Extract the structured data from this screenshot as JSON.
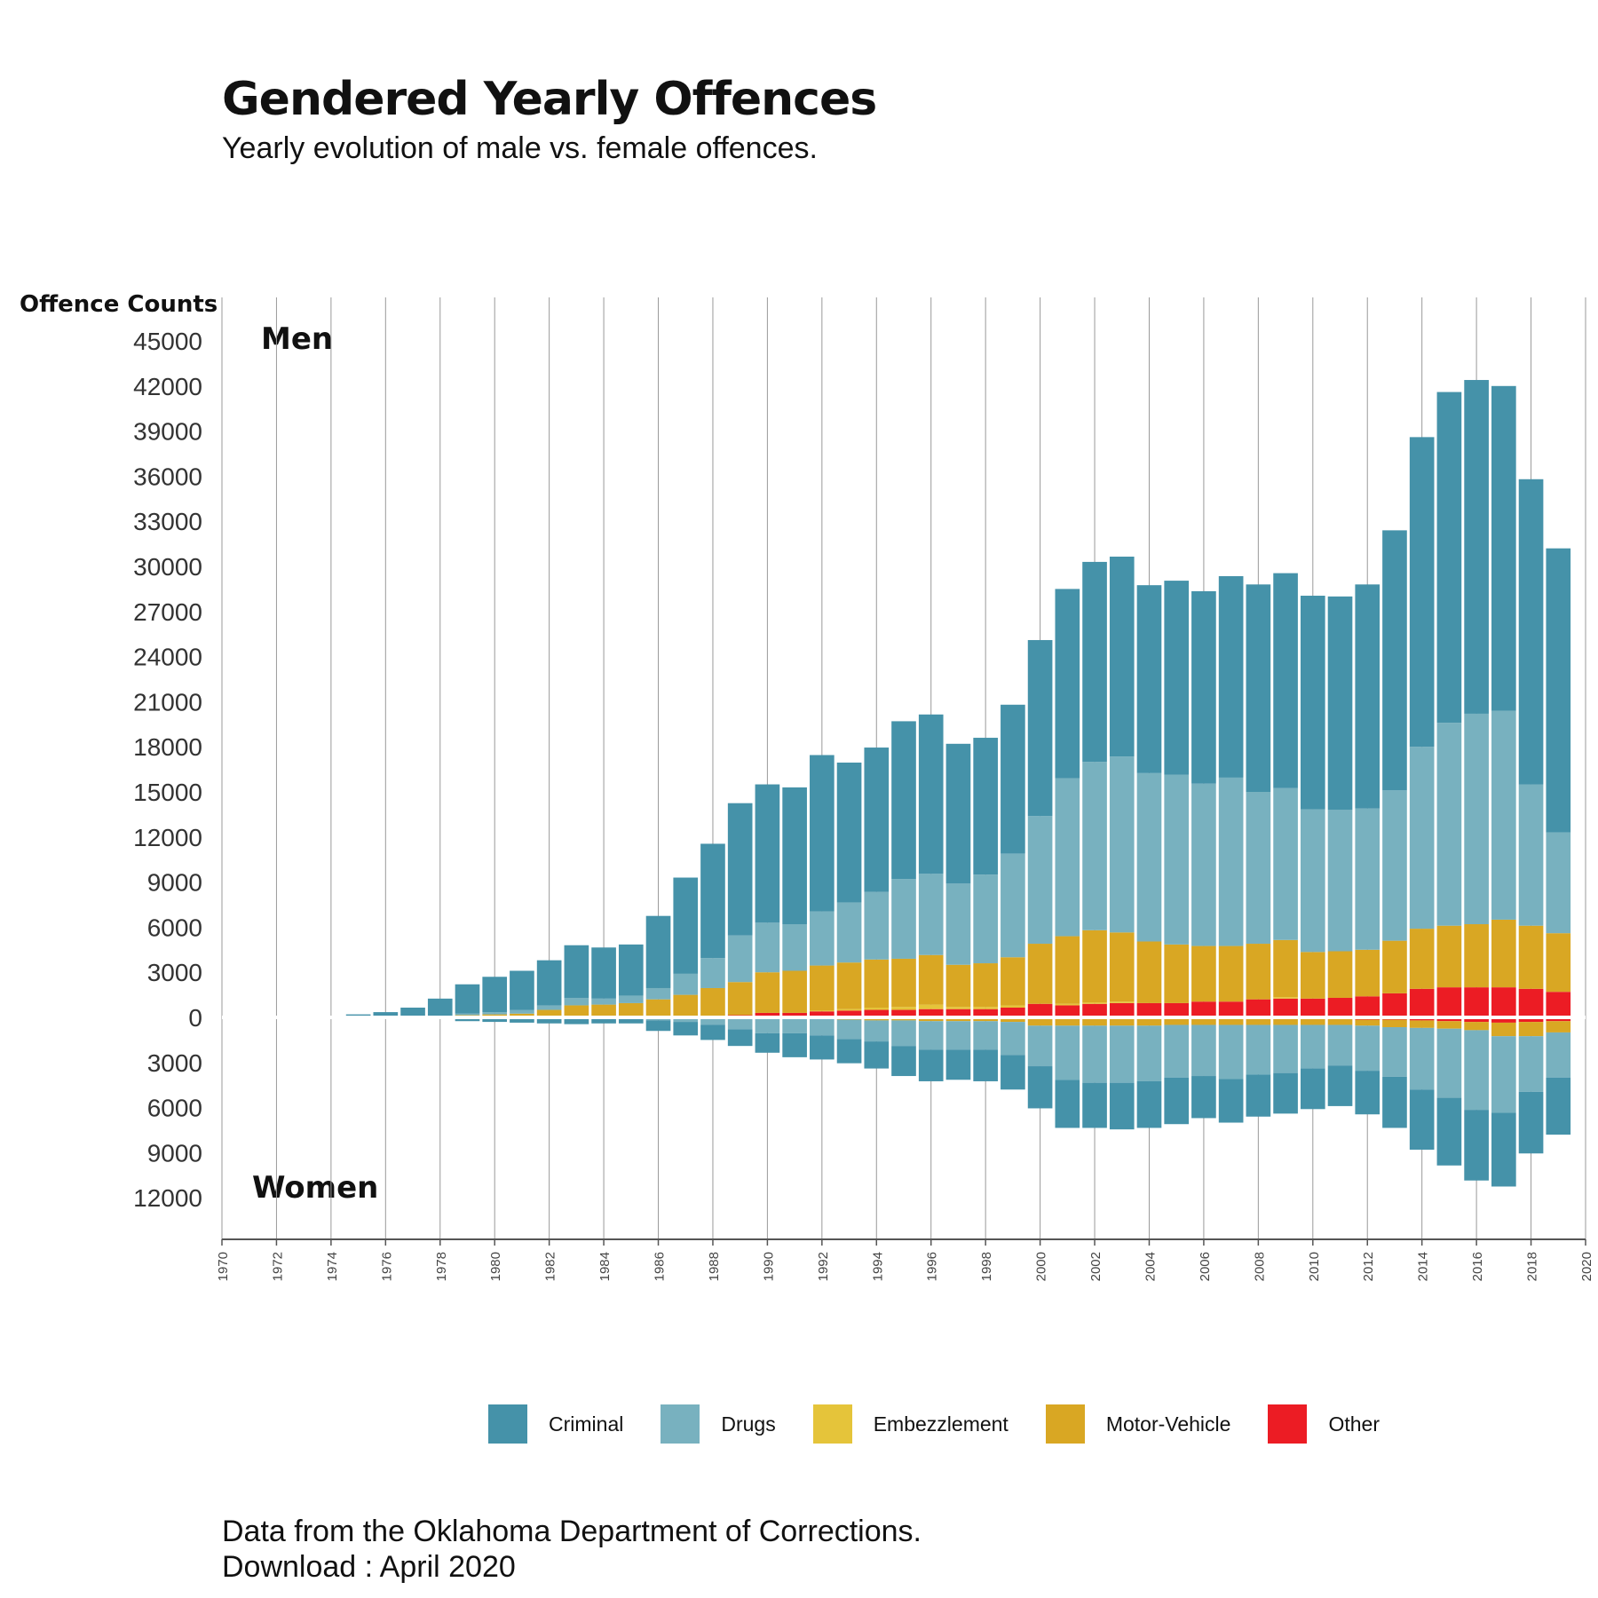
{
  "title": "Gendered Yearly Offences",
  "subtitle": "Yearly evolution of male vs. female offences.",
  "footer": {
    "line1": "Data from the Oklahoma Department of Corrections.",
    "line2": "Download : April 2020"
  },
  "chart_data": {
    "type": "bar",
    "stacked": true,
    "diverging": true,
    "title": "Gendered Yearly Offences",
    "subtitle": "Yearly evolution of male vs. female offences.",
    "ylabel": "Offence Counts",
    "upper_label": "Men",
    "lower_label": "Women",
    "ylim": [
      -12500,
      45000
    ],
    "xlim": [
      1970,
      2020
    ],
    "y_ticks": [
      45000,
      42000,
      39000,
      36000,
      33000,
      30000,
      27000,
      24000,
      21000,
      18000,
      15000,
      12000,
      9000,
      6000,
      3000,
      0,
      -3000,
      -6000,
      -9000,
      -12000
    ],
    "y_tick_labels": [
      "45000",
      "42000",
      "39000",
      "36000",
      "33000",
      "30000",
      "27000",
      "24000",
      "21000",
      "18000",
      "15000",
      "12000",
      "9000",
      "6000",
      "3000",
      "0",
      "3000",
      "6000",
      "9000",
      "12000"
    ],
    "x_ticks": [
      "1970",
      "1972",
      "1974",
      "1976",
      "1978",
      "1980",
      "1982",
      "1984",
      "1986",
      "1988",
      "1990",
      "1992",
      "1994",
      "1996",
      "1998",
      "2000",
      "2002",
      "2004",
      "2006",
      "2008",
      "2010",
      "2012",
      "2014",
      "2016",
      "2018",
      "2020"
    ],
    "grid": "vertical",
    "legend_position": "bottom",
    "colors": {
      "Criminal": "#4592a9",
      "Drugs": "#78b1bf",
      "Embezzlement": "#e5c43a",
      "Motor-Vehicle": "#d9a723",
      "Other": "#ec1c24"
    },
    "series_order": [
      "Other",
      "Embezzlement",
      "Motor-Vehicle",
      "Drugs",
      "Criminal"
    ],
    "legend_order": [
      "Criminal",
      "Drugs",
      "Embezzlement",
      "Motor-Vehicle",
      "Other"
    ],
    "years": [
      1974,
      1975,
      1976,
      1977,
      1978,
      1979,
      1980,
      1981,
      1982,
      1983,
      1984,
      1985,
      1986,
      1987,
      1988,
      1989,
      1990,
      1991,
      1992,
      1993,
      1994,
      1995,
      1996,
      1997,
      1998,
      1999,
      2000,
      2001,
      2002,
      2003,
      2004,
      2005,
      2006,
      2007,
      2008,
      2009,
      2010,
      2011,
      2012,
      2013,
      2014,
      2015,
      2016,
      2017,
      2018,
      2019
    ],
    "men": [
      {
        "name": "Other",
        "values": [
          0,
          0,
          0,
          0,
          0,
          0,
          0,
          0,
          0,
          0,
          0,
          0,
          0,
          0,
          100,
          150,
          300,
          300,
          400,
          450,
          500,
          500,
          550,
          550,
          550,
          650,
          900,
          800,
          900,
          950,
          950,
          950,
          1050,
          1050,
          1200,
          1250,
          1250,
          1300,
          1400,
          1600,
          1900,
          2000,
          2000,
          2000,
          1900,
          1700
        ]
      },
      {
        "name": "Embezzlement",
        "values": [
          0,
          0,
          0,
          0,
          0,
          0,
          0,
          0,
          0,
          0,
          0,
          0,
          0,
          0,
          0,
          0,
          0,
          0,
          50,
          100,
          150,
          200,
          300,
          150,
          150,
          150,
          0,
          100,
          100,
          100,
          0,
          0,
          0,
          0,
          0,
          100,
          0,
          0,
          0,
          0,
          0,
          0,
          0,
          0,
          0,
          0
        ]
      },
      {
        "name": "Motor-Vehicle",
        "values": [
          0,
          0,
          0,
          0,
          0,
          150,
          200,
          250,
          500,
          800,
          850,
          950,
          1200,
          1500,
          1850,
          2200,
          2700,
          2800,
          3000,
          3100,
          3200,
          3200,
          3300,
          2800,
          2900,
          3200,
          4000,
          4500,
          4800,
          4600,
          4100,
          3900,
          3700,
          3700,
          3700,
          3800,
          3100,
          3100,
          3100,
          3500,
          4000,
          4100,
          4200,
          4500,
          4200,
          3900
        ]
      },
      {
        "name": "Drugs",
        "values": [
          0,
          0,
          0,
          100,
          100,
          100,
          150,
          250,
          300,
          500,
          400,
          500,
          750,
          1400,
          2000,
          3100,
          3300,
          3100,
          3600,
          4000,
          4500,
          5300,
          5400,
          5400,
          5900,
          6900,
          8500,
          10500,
          11200,
          11700,
          11200,
          11300,
          10800,
          11200,
          10100,
          10100,
          9500,
          9400,
          9400,
          10000,
          12100,
          13500,
          14000,
          13900,
          9400,
          6700
        ]
      },
      {
        "name": "Criminal",
        "values": [
          100,
          200,
          350,
          550,
          1150,
          1950,
          2350,
          2600,
          3000,
          3500,
          3400,
          3400,
          4800,
          6400,
          7600,
          8800,
          9200,
          9100,
          10400,
          9300,
          9600,
          10500,
          10600,
          9300,
          9100,
          9900,
          11700,
          12600,
          13300,
          13300,
          12500,
          12900,
          12800,
          13400,
          13800,
          14300,
          14200,
          14200,
          14900,
          17300,
          20600,
          22000,
          22200,
          21600,
          20300,
          18900
        ]
      }
    ],
    "women": [
      {
        "name": "Other",
        "values": [
          0,
          0,
          0,
          0,
          0,
          0,
          0,
          0,
          0,
          0,
          0,
          0,
          0,
          0,
          0,
          0,
          0,
          0,
          0,
          0,
          0,
          0,
          0,
          0,
          0,
          0,
          100,
          100,
          100,
          100,
          100,
          100,
          100,
          100,
          100,
          100,
          100,
          100,
          150,
          150,
          200,
          250,
          300,
          350,
          300,
          250
        ]
      },
      {
        "name": "Embezzlement",
        "values": [
          0,
          0,
          0,
          0,
          0,
          0,
          0,
          0,
          0,
          0,
          0,
          0,
          0,
          0,
          0,
          0,
          0,
          0,
          0,
          0,
          0,
          0,
          0,
          0,
          0,
          0,
          0,
          0,
          0,
          0,
          0,
          0,
          0,
          0,
          0,
          0,
          0,
          0,
          0,
          0,
          0,
          0,
          0,
          0,
          0,
          0
        ]
      },
      {
        "name": "Motor-Vehicle",
        "values": [
          0,
          0,
          0,
          0,
          0,
          0,
          0,
          0,
          0,
          0,
          0,
          0,
          0,
          0,
          0,
          0,
          50,
          50,
          100,
          150,
          200,
          200,
          250,
          250,
          250,
          300,
          450,
          450,
          450,
          450,
          450,
          400,
          400,
          400,
          400,
          400,
          400,
          400,
          400,
          500,
          500,
          500,
          550,
          900,
          950,
          750
        ]
      },
      {
        "name": "Drugs",
        "values": [
          0,
          0,
          0,
          0,
          0,
          0,
          0,
          0,
          0,
          0,
          0,
          0,
          200,
          300,
          500,
          800,
          1000,
          1000,
          1100,
          1300,
          1400,
          1700,
          1900,
          1900,
          1900,
          2200,
          2700,
          3600,
          3800,
          3800,
          3700,
          3500,
          3400,
          3600,
          3300,
          3200,
          2900,
          2700,
          3000,
          3300,
          4100,
          4600,
          5300,
          5100,
          3700,
          3000
        ]
      },
      {
        "name": "Criminal",
        "values": [
          0,
          0,
          0,
          0,
          0,
          250,
          300,
          350,
          400,
          450,
          400,
          400,
          700,
          900,
          1000,
          1100,
          1300,
          1600,
          1600,
          1600,
          1800,
          2000,
          2100,
          2000,
          2100,
          2300,
          2800,
          3200,
          3000,
          3100,
          3100,
          3100,
          2800,
          2900,
          2800,
          2700,
          2700,
          2700,
          2900,
          3400,
          4000,
          4500,
          4700,
          4900,
          4100,
          3800
        ]
      }
    ]
  }
}
